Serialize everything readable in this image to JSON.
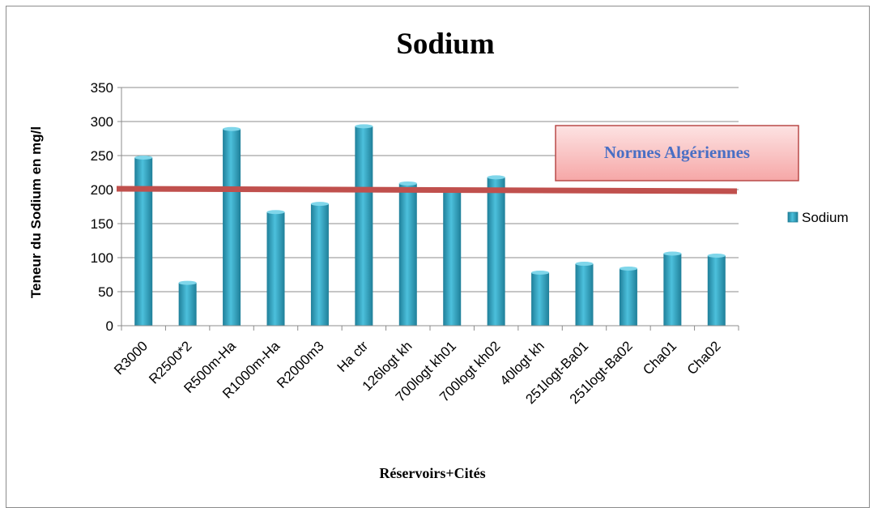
{
  "chart_data": {
    "type": "bar",
    "title": "Sodium",
    "ylabel": "Teneur du Sodium en mg/l",
    "xlabel": "Réservoirs+Cités",
    "categories": [
      "R3000",
      "R2500*2",
      "R500m-Ha",
      "R1000m-Ha",
      "R2000m3",
      "Ha ctr",
      "126logt kh",
      "700logt kh01",
      "700logt kh02",
      "40logt kh",
      "251logt-Ba01",
      "251logt-Ba02",
      "Cha01",
      "Cha02"
    ],
    "series": [
      {
        "name": "Sodium",
        "values": [
          247,
          63,
          289,
          167,
          179,
          293,
          209,
          198,
          218,
          78,
          91,
          84,
          106,
          103
        ]
      }
    ],
    "ylim": [
      0,
      350
    ],
    "yticks": [
      0,
      50,
      100,
      150,
      200,
      250,
      300,
      350
    ],
    "grid": true,
    "legend_position": "right",
    "bar_color": "#3aa9c6",
    "reference_line": {
      "value": 200,
      "label": "Normes Algériennes",
      "color": "#c0504d"
    }
  }
}
